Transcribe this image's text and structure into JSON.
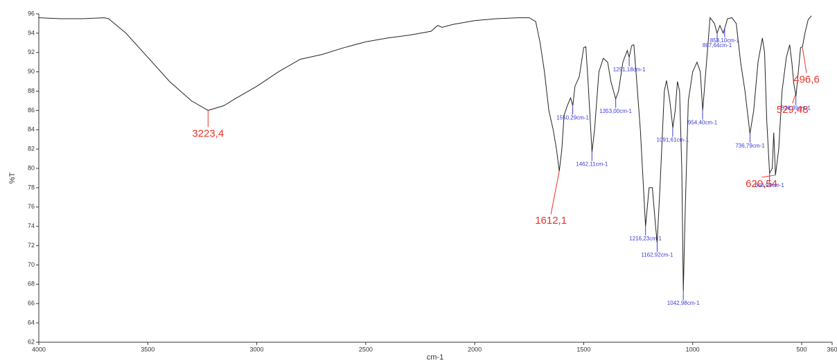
{
  "chart_data": {
    "type": "line",
    "xlabel": "cm-1",
    "ylabel": "%T",
    "xlim": [
      4000,
      360
    ],
    "ylim": [
      62,
      96
    ],
    "xticks": [
      4000,
      3500,
      3000,
      2500,
      2000,
      1500,
      1000,
      500,
      360
    ],
    "yticks": [
      62,
      64,
      66,
      68,
      70,
      72,
      74,
      76,
      78,
      80,
      82,
      84,
      86,
      88,
      90,
      92,
      94,
      96
    ],
    "x": [
      4000,
      3900,
      3800,
      3700,
      3680,
      3600,
      3500,
      3400,
      3300,
      3223,
      3150,
      3100,
      3000,
      2900,
      2800,
      2700,
      2600,
      2500,
      2400,
      2300,
      2200,
      2170,
      2150,
      2100,
      2000,
      1900,
      1800,
      1750,
      1720,
      1700,
      1680,
      1660,
      1640,
      1625,
      1612,
      1600,
      1590,
      1575,
      1560,
      1550,
      1540,
      1520,
      1500,
      1490,
      1480,
      1462,
      1450,
      1430,
      1410,
      1390,
      1375,
      1353,
      1340,
      1320,
      1300,
      1291,
      1280,
      1270,
      1260,
      1240,
      1216,
      1200,
      1185,
      1170,
      1163,
      1150,
      1130,
      1120,
      1105,
      1091,
      1080,
      1070,
      1060,
      1050,
      1043,
      1035,
      1020,
      1000,
      980,
      965,
      954,
      940,
      920,
      900,
      888,
      875,
      860,
      853,
      840,
      820,
      800,
      780,
      760,
      737,
      720,
      700,
      680,
      670,
      660,
      647,
      635,
      628,
      620,
      605,
      590,
      570,
      555,
      545,
      536,
      526,
      515,
      505,
      496,
      485,
      470,
      455
    ],
    "series": [
      {
        "color": "#222222",
        "values": [
          95.6,
          95.5,
          95.5,
          95.6,
          95.5,
          94,
          91.5,
          89,
          87,
          86,
          86.5,
          87.2,
          88.5,
          90,
          91.3,
          91.8,
          92.5,
          93.1,
          93.5,
          93.8,
          94.2,
          94.8,
          94.6,
          94.9,
          95.3,
          95.5,
          95.6,
          95.6,
          95.2,
          93,
          90,
          86,
          84,
          82,
          79.7,
          82,
          85.5,
          86.5,
          87.3,
          86.5,
          88.5,
          89.5,
          92.5,
          92.6,
          89,
          81.7,
          84,
          90,
          91.4,
          91,
          89,
          87.2,
          88,
          91,
          92.2,
          91.5,
          92.7,
          92.8,
          90,
          84,
          74,
          78,
          78,
          74,
          72.3,
          78,
          88,
          89.1,
          87,
          84.2,
          86,
          89,
          88,
          80,
          67.3,
          75,
          87,
          90,
          91,
          90,
          86,
          90,
          95.6,
          95,
          94,
          94.8,
          94,
          94.5,
          95.5,
          95.6,
          95,
          91,
          88,
          83.6,
          86,
          91,
          93.5,
          92,
          85,
          79.5,
          80,
          83.7,
          79.3,
          82,
          88,
          91.5,
          92.8,
          91,
          88.8,
          87.5,
          90,
          92.5,
          92.6,
          94,
          95.4,
          95.8
        ]
      }
    ],
    "annotations": [
      {
        "label": "3223,4",
        "x": 3223.4,
        "y": 86,
        "color": "#e8332b"
      },
      {
        "label": "1612,1",
        "x": 1612.1,
        "y": 79.7,
        "color": "#e8332b"
      },
      {
        "label": "620,54",
        "x": 620.54,
        "y": 79.3,
        "color": "#e8332b"
      },
      {
        "label": "529,48",
        "x": 529.48,
        "y": 87.6,
        "color": "#e8332b"
      },
      {
        "label": "496,6",
        "x": 496.6,
        "y": 92.6,
        "color": "#e8332b"
      },
      {
        "label": "1550,29cm-1",
        "x": 1550.29,
        "y": 86.5,
        "color": "#3b3bd9"
      },
      {
        "label": "1462,11cm-1",
        "x": 1462.11,
        "y": 81.7,
        "color": "#3b3bd9"
      },
      {
        "label": "1353,00cm-1",
        "x": 1353.0,
        "y": 87.2,
        "color": "#3b3bd9"
      },
      {
        "label": "1291,18cm-1",
        "x": 1291.18,
        "y": 91.5,
        "color": "#3b3bd9"
      },
      {
        "label": "1216,23cm-1",
        "x": 1216.23,
        "y": 74,
        "color": "#3b3bd9"
      },
      {
        "label": "1162,92cm-1",
        "x": 1162.92,
        "y": 72.3,
        "color": "#3b3bd9"
      },
      {
        "label": "1091,61cm-1",
        "x": 1091.61,
        "y": 84.2,
        "color": "#3b3bd9"
      },
      {
        "label": "1042,98cm-1",
        "x": 1042.98,
        "y": 67.3,
        "color": "#3b3bd9"
      },
      {
        "label": "954,40cm-1",
        "x": 954.4,
        "y": 86,
        "color": "#3b3bd9"
      },
      {
        "label": "887,64cm-1",
        "x": 887.64,
        "y": 94,
        "color": "#3b3bd9"
      },
      {
        "label": "853,10cm-1",
        "x": 853.1,
        "y": 94.5,
        "color": "#3b3bd9"
      },
      {
        "label": "736,79cm-1",
        "x": 736.79,
        "y": 83.6,
        "color": "#3b3bd9"
      },
      {
        "label": "646,99cm-1",
        "x": 646.99,
        "y": 79.5,
        "color": "#3b3bd9"
      },
      {
        "label": "526,39cm-1",
        "x": 526.39,
        "y": 87.5,
        "color": "#3b3bd9"
      }
    ]
  }
}
